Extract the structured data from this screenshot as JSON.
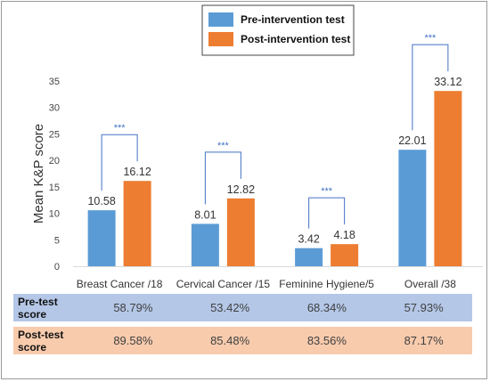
{
  "chart_data": {
    "type": "bar",
    "ylabel": "Mean K&P score",
    "ylim": [
      0,
      35
    ],
    "yticks": [
      0,
      5,
      10,
      15,
      20,
      25,
      30,
      35
    ],
    "grid": false,
    "legend_position": "top-center",
    "categories": [
      "Breast Cancer /18",
      "Cervical Cancer /15",
      "Feminine  Hygiene/5",
      "Overall /38"
    ],
    "series": [
      {
        "name": "Pre-intervention test",
        "color": "#5b9bd5",
        "values": [
          10.58,
          8.01,
          3.42,
          22.01
        ],
        "labels": [
          "10.58",
          "8.01",
          "3.42",
          "22.01"
        ]
      },
      {
        "name": "Post-intervention test",
        "color": "#ed7d31",
        "values": [
          16.12,
          12.82,
          4.18,
          33.12
        ],
        "labels": [
          "16.12",
          "12.82",
          "4.18",
          "33.12"
        ]
      }
    ],
    "significance": [
      "***",
      "***",
      "***",
      "***"
    ]
  },
  "table": {
    "rows": [
      {
        "header": "Pre-test score",
        "cells": [
          "58.79%",
          "53.42%",
          "68.34%",
          "57.93%"
        ]
      },
      {
        "header": "Post-test score",
        "cells": [
          "89.58%",
          "85.48%",
          "83.56%",
          "87.17%"
        ]
      }
    ]
  }
}
